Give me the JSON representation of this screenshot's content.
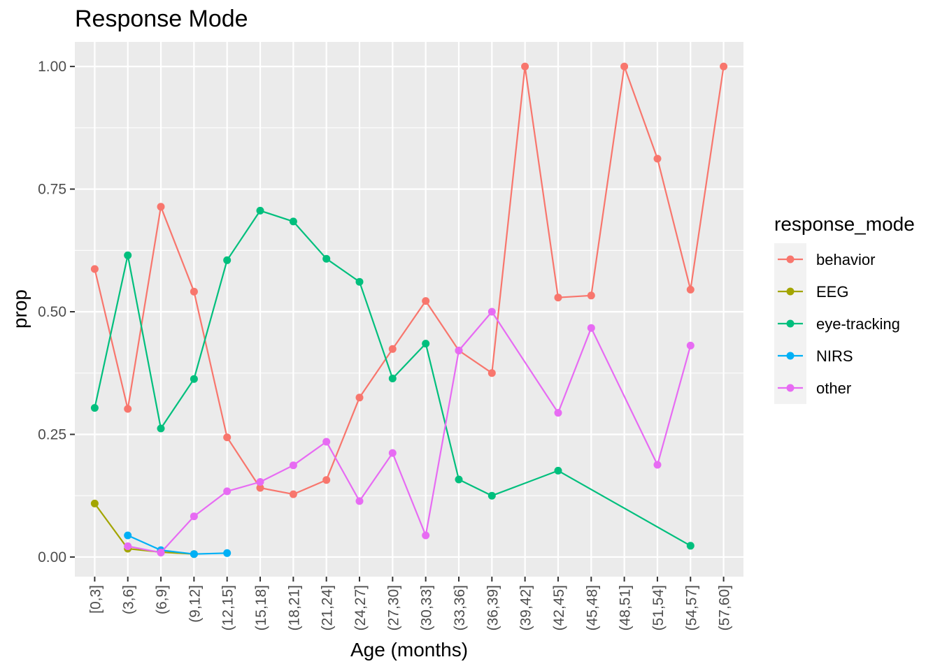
{
  "chart_data": {
    "type": "line",
    "title": "Response Mode",
    "xlabel": "Age (months)",
    "ylabel": "prop",
    "categories": [
      "[0,3]",
      "(3,6]",
      "(6,9]",
      "(9,12]",
      "(12,15]",
      "(15,18]",
      "(18,21]",
      "(21,24]",
      "(24,27]",
      "(27,30]",
      "(30,33]",
      "(33,36]",
      "(36,39]",
      "(39,42]",
      "(42,45]",
      "(45,48]",
      "(48,51]",
      "(51,54]",
      "(54,57]",
      "(57,60]"
    ],
    "ylim": [
      -0.04,
      1.05
    ],
    "yticks": [
      0.0,
      0.25,
      0.5,
      0.75,
      1.0
    ],
    "ytick_labels": [
      "0.00",
      "0.25",
      "0.50",
      "0.75",
      "1.00"
    ],
    "grid": true,
    "legend": {
      "title": "response_mode",
      "position": "right"
    },
    "series": [
      {
        "name": "behavior",
        "color": "#F8766D",
        "values": [
          0.587,
          0.302,
          0.714,
          0.541,
          0.244,
          0.141,
          0.128,
          0.157,
          0.325,
          0.424,
          0.522,
          0.421,
          0.375,
          1.0,
          0.529,
          0.533,
          1.0,
          0.812,
          0.545,
          1.0
        ]
      },
      {
        "name": "EEG",
        "color": "#A3A500",
        "values": [
          0.109,
          0.017,
          0.01,
          0.006,
          null,
          null,
          null,
          null,
          null,
          null,
          null,
          null,
          null,
          null,
          null,
          null,
          null,
          null,
          null,
          null
        ]
      },
      {
        "name": "eye-tracking",
        "color": "#00BF7D",
        "values": [
          0.304,
          0.615,
          0.262,
          0.363,
          0.605,
          0.706,
          0.684,
          0.608,
          0.561,
          0.364,
          0.435,
          0.158,
          0.125,
          null,
          0.176,
          null,
          null,
          null,
          0.023,
          null
        ]
      },
      {
        "name": "NIRS",
        "color": "#00B0F6",
        "values": [
          null,
          0.044,
          0.014,
          0.006,
          0.008,
          null,
          null,
          null,
          null,
          null,
          null,
          null,
          null,
          null,
          null,
          null,
          null,
          null,
          null,
          null
        ]
      },
      {
        "name": "other",
        "color": "#E76BF3",
        "values": [
          null,
          0.022,
          0.009,
          0.083,
          0.134,
          0.153,
          0.187,
          0.235,
          0.114,
          0.212,
          0.044,
          0.421,
          0.5,
          null,
          0.294,
          0.467,
          null,
          0.188,
          0.431,
          null
        ]
      }
    ]
  }
}
